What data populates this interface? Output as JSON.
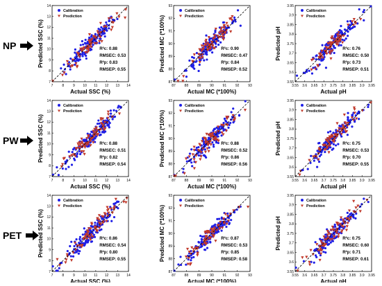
{
  "row_labels": [
    "NP",
    "PW",
    "PET"
  ],
  "legend": {
    "calibration": "Calibration",
    "prediction": "Prediction"
  },
  "colors": {
    "calibration": "#1f1fe6",
    "prediction": "#c0392b",
    "diagonal": "#000000",
    "arrow": "#000000"
  },
  "chart_data": [
    {
      "type": "scatter",
      "row": "NP",
      "xlabel": "Actual SSC (%)",
      "ylabel": "Predicted SSC (%)",
      "xlim": [
        7,
        14
      ],
      "ylim": [
        7,
        14
      ],
      "xticks": [
        7,
        8,
        9,
        10,
        11,
        12,
        13,
        14
      ],
      "yticks": [
        7,
        8,
        9,
        10,
        11,
        12,
        13,
        14
      ],
      "diagonal": true,
      "legend_position": "top-left",
      "stats": [
        {
          "label": "R²c: 0.88"
        },
        {
          "label": "RMSEC: 0.53"
        },
        {
          "label": "R²p: 0.83"
        },
        {
          "label": "RMSEP: 0.55"
        }
      ],
      "series": [
        {
          "name": "Calibration",
          "marker": "circle",
          "r2": 0.88,
          "rmse": 0.53
        },
        {
          "name": "Prediction",
          "marker": "triangle-down",
          "r2": 0.83,
          "rmse": 0.55
        }
      ]
    },
    {
      "type": "scatter",
      "row": "NP",
      "xlabel": "Actual MC (*100%)",
      "ylabel": "Predicted MC (*100%)",
      "xlim": [
        87,
        93
      ],
      "ylim": [
        87,
        93
      ],
      "xticks": [
        87,
        88,
        89,
        90,
        91,
        92,
        93
      ],
      "yticks": [
        87,
        88,
        89,
        90,
        91,
        92,
        93
      ],
      "diagonal": true,
      "legend_position": "top-left",
      "stats": [
        {
          "label": "R²c: 0.90"
        },
        {
          "label": "RMSEC: 0.47"
        },
        {
          "label": "R²p: 0.84"
        },
        {
          "label": "RMSEP: 0.52"
        }
      ],
      "series": [
        {
          "name": "Calibration",
          "marker": "circle",
          "r2": 0.9,
          "rmse": 0.47
        },
        {
          "name": "Prediction",
          "marker": "triangle-down",
          "r2": 0.84,
          "rmse": 0.52
        }
      ]
    },
    {
      "type": "scatter",
      "row": "NP",
      "xlabel": "Actual pH",
      "ylabel": "Predicted pH",
      "xlim": [
        3.55,
        3.95
      ],
      "ylim": [
        3.55,
        3.95
      ],
      "xticks": [
        "3.55",
        "3.6",
        "3.65",
        "3.7",
        "3.75",
        "3.8",
        "3.85",
        "3.9",
        "3.95"
      ],
      "yticks": [
        "3.55",
        "3.6",
        "3.65",
        "3.7",
        "3.75",
        "3.8",
        "3.85",
        "3.9",
        "3.95"
      ],
      "diagonal": true,
      "legend_position": "top-left",
      "stats": [
        {
          "label": "R²c: 0.76"
        },
        {
          "label": "RMSEC: 0.50"
        },
        {
          "label": "R²p: 0.73"
        },
        {
          "label": "RMSEP: 0.51"
        }
      ],
      "series": [
        {
          "name": "Calibration",
          "marker": "circle",
          "r2": 0.76,
          "rmse": 0.5
        },
        {
          "name": "Prediction",
          "marker": "triangle-down",
          "r2": 0.73,
          "rmse": 0.51
        }
      ]
    },
    {
      "type": "scatter",
      "row": "PW",
      "xlabel": "Actual SSC (%)",
      "ylabel": "Predicted SSC (%)",
      "xlim": [
        7,
        14
      ],
      "ylim": [
        7,
        14
      ],
      "xticks": [
        7,
        8,
        9,
        10,
        11,
        12,
        13,
        14
      ],
      "yticks": [
        7,
        8,
        9,
        10,
        11,
        12,
        13,
        14
      ],
      "diagonal": true,
      "legend_position": "top-left",
      "stats": [
        {
          "label": "R²c: 0.88"
        },
        {
          "label": "RMSEC: 0.51"
        },
        {
          "label": "R²p: 0.82"
        },
        {
          "label": "RMSEP: 0.54"
        }
      ],
      "series": [
        {
          "name": "Calibration",
          "marker": "circle",
          "r2": 0.88,
          "rmse": 0.51
        },
        {
          "name": "Prediction",
          "marker": "triangle-down",
          "r2": 0.82,
          "rmse": 0.54
        }
      ]
    },
    {
      "type": "scatter",
      "row": "PW",
      "xlabel": "Actual MC (*100%)",
      "ylabel": "Predicted MC (*100%)",
      "xlim": [
        87,
        93
      ],
      "ylim": [
        87,
        93
      ],
      "xticks": [
        87,
        88,
        89,
        90,
        91,
        92,
        93
      ],
      "yticks": [
        87,
        88,
        89,
        90,
        91,
        92,
        93
      ],
      "diagonal": true,
      "legend_position": "top-left",
      "stats": [
        {
          "label": "R²c: 0.88"
        },
        {
          "label": "RMSEC: 0.52"
        },
        {
          "label": "R²p: 0.86"
        },
        {
          "label": "RMSEP: 0.56"
        }
      ],
      "series": [
        {
          "name": "Calibration",
          "marker": "circle",
          "r2": 0.88,
          "rmse": 0.52
        },
        {
          "name": "Prediction",
          "marker": "triangle-down",
          "r2": 0.86,
          "rmse": 0.56
        }
      ]
    },
    {
      "type": "scatter",
      "row": "PW",
      "xlabel": "Actual pH",
      "ylabel": "Predicted pH",
      "xlim": [
        3.55,
        3.95
      ],
      "ylim": [
        3.55,
        3.95
      ],
      "xticks": [
        "3.55",
        "3.6",
        "3.65",
        "3.7",
        "3.75",
        "3.8",
        "3.85",
        "3.9",
        "3.95"
      ],
      "yticks": [
        "3.55",
        "3.6",
        "3.65",
        "3.7",
        "3.75",
        "3.8",
        "3.85",
        "3.9",
        "3.95"
      ],
      "diagonal": true,
      "legend_position": "top-left",
      "stats": [
        {
          "label": "R²c: 0.75"
        },
        {
          "label": "RMSEC: 0.53"
        },
        {
          "label": "R²p: 0.70"
        },
        {
          "label": "RMSEP: 0.55"
        }
      ],
      "series": [
        {
          "name": "Calibration",
          "marker": "circle",
          "r2": 0.75,
          "rmse": 0.53
        },
        {
          "name": "Prediction",
          "marker": "triangle-down",
          "r2": 0.7,
          "rmse": 0.55
        }
      ]
    },
    {
      "type": "scatter",
      "row": "PET",
      "xlabel": "Actual SSC (%)",
      "ylabel": "Predicted SSC (%)",
      "xlim": [
        7,
        14
      ],
      "ylim": [
        7,
        14
      ],
      "xticks": [
        7,
        8,
        9,
        10,
        11,
        12,
        13,
        14
      ],
      "yticks": [
        7,
        8,
        9,
        10,
        11,
        12,
        13,
        14
      ],
      "diagonal": true,
      "legend_position": "top-left",
      "stats": [
        {
          "label": "R²c: 0.86"
        },
        {
          "label": "RMSEC: 0.54"
        },
        {
          "label": "R²p: 0.80"
        },
        {
          "label": "RMSEP: 0.55"
        }
      ],
      "series": [
        {
          "name": "Calibration",
          "marker": "circle",
          "r2": 0.86,
          "rmse": 0.54
        },
        {
          "name": "Prediction",
          "marker": "triangle-down",
          "r2": 0.8,
          "rmse": 0.55
        }
      ]
    },
    {
      "type": "scatter",
      "row": "PET",
      "xlabel": "Actual MC (*100%)",
      "ylabel": "Predicted MC (*100%)",
      "xlim": [
        87,
        93
      ],
      "ylim": [
        87,
        93
      ],
      "xticks": [
        87,
        88,
        89,
        90,
        91,
        92,
        93
      ],
      "yticks": [
        87,
        88,
        89,
        90,
        91,
        92,
        93
      ],
      "diagonal": true,
      "legend_position": "top-left",
      "stats": [
        {
          "label": "R²c: 0.87"
        },
        {
          "label": "RMSEC: 0.53"
        },
        {
          "label": "R²p: 0.85"
        },
        {
          "label": "RMSEP: 0.58"
        }
      ],
      "series": [
        {
          "name": "Calibration",
          "marker": "circle",
          "r2": 0.87,
          "rmse": 0.53
        },
        {
          "name": "Prediction",
          "marker": "triangle-down",
          "r2": 0.85,
          "rmse": 0.58
        }
      ]
    },
    {
      "type": "scatter",
      "row": "PET",
      "xlabel": "Actual pH",
      "ylabel": "Predicted pH",
      "xlim": [
        3.55,
        3.95
      ],
      "ylim": [
        3.55,
        3.95
      ],
      "xticks": [
        "3.55",
        "3.6",
        "3.65",
        "3.7",
        "3.75",
        "3.8",
        "3.85",
        "3.9",
        "3.95"
      ],
      "yticks": [
        "3.55",
        "3.6",
        "3.65",
        "3.7",
        "3.75",
        "3.8",
        "3.85",
        "3.9",
        "3.95"
      ],
      "diagonal": true,
      "legend_position": "top-left",
      "stats": [
        {
          "label": "R²c: 0.75"
        },
        {
          "label": "RMSEC: 0.60"
        },
        {
          "label": "R²p: 0.71"
        },
        {
          "label": "RMSEP: 0.61"
        }
      ],
      "series": [
        {
          "name": "Calibration",
          "marker": "circle",
          "r2": 0.75,
          "rmse": 0.6
        },
        {
          "name": "Prediction",
          "marker": "triangle-down",
          "r2": 0.71,
          "rmse": 0.61
        }
      ]
    }
  ]
}
